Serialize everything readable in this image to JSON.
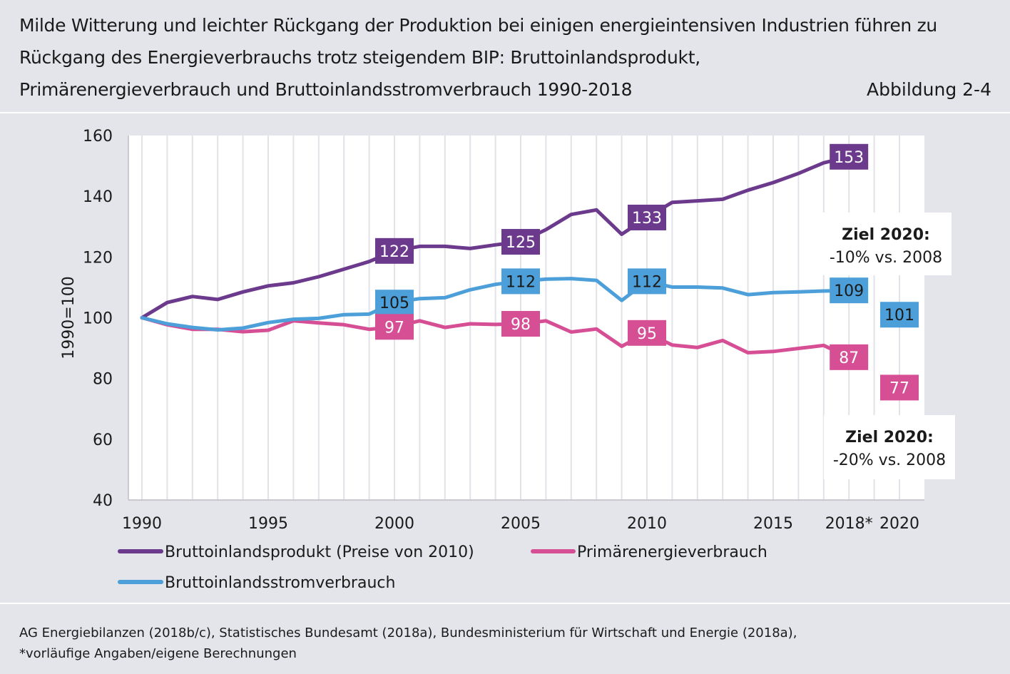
{
  "header": {
    "title_lines": [
      "Milde Witterung und leichter Rückgang der Produktion bei einigen energieintensiven Industrien führen zu",
      "Rückgang des Energieverbrauchs trotz steigendem BIP: Bruttoinlandsprodukt,",
      "Primärenergieverbrauch und Bruttoinlandsstromverbrauch 1990-2018"
    ],
    "figure_label": "Abbildung 2-4"
  },
  "chart_data": {
    "type": "line",
    "ylabel": "1990=100",
    "ylim": [
      40,
      160
    ],
    "yticks": [
      40,
      60,
      80,
      100,
      120,
      140,
      160
    ],
    "x_categories": [
      "1990",
      "1991",
      "1992",
      "1993",
      "1994",
      "1995",
      "1996",
      "1997",
      "1998",
      "1999",
      "2000",
      "2001",
      "2002",
      "2003",
      "2004",
      "2005",
      "2006",
      "2007",
      "2008",
      "2009",
      "2010",
      "2011",
      "2012",
      "2013",
      "2014",
      "2015",
      "2016",
      "2017",
      "2018*",
      "2019",
      "2020"
    ],
    "x_tick_labels": [
      {
        "category": "1990",
        "label": "1990"
      },
      {
        "category": "1995",
        "label": "1995"
      },
      {
        "category": "2000",
        "label": "2000"
      },
      {
        "category": "2005",
        "label": "2005"
      },
      {
        "category": "2010",
        "label": "2010"
      },
      {
        "category": "2015",
        "label": "2015"
      },
      {
        "category": "2018*",
        "label": "2018*"
      },
      {
        "category": "2020",
        "label": "2020"
      }
    ],
    "grid": "vertical",
    "series": [
      {
        "name": "Bruttoinlandsprodukt (Preise von 2010)",
        "color": "#6c3a8c",
        "x": [
          "1990",
          "1991",
          "1992",
          "1993",
          "1994",
          "1995",
          "1996",
          "1997",
          "1998",
          "1999",
          "2000",
          "2001",
          "2002",
          "2003",
          "2004",
          "2005",
          "2006",
          "2007",
          "2008",
          "2009",
          "2010",
          "2011",
          "2012",
          "2013",
          "2014",
          "2015",
          "2016",
          "2017",
          "2018*"
        ],
        "values": [
          100,
          105,
          107,
          106,
          108.5,
          110.5,
          111.5,
          113.5,
          116,
          118.5,
          122,
          123.5,
          123.5,
          122.8,
          124,
          125,
          129,
          134,
          135.5,
          127.5,
          133,
          138,
          138.5,
          139,
          142,
          144.5,
          147.5,
          151,
          153
        ]
      },
      {
        "name": "Primärenergieverbrauch",
        "color": "#d64f95",
        "x": [
          "1990",
          "1991",
          "1992",
          "1993",
          "1994",
          "1995",
          "1996",
          "1997",
          "1998",
          "1999",
          "2000",
          "2001",
          "2002",
          "2003",
          "2004",
          "2005",
          "2006",
          "2007",
          "2008",
          "2009",
          "2010",
          "2011",
          "2012",
          "2013",
          "2014",
          "2015",
          "2016",
          "2017",
          "2018*"
        ],
        "values": [
          100,
          97.7,
          96.2,
          96.2,
          95.4,
          95.9,
          99,
          98.3,
          97.7,
          96.2,
          97,
          99,
          96.8,
          98,
          97.8,
          98,
          99,
          95.3,
          96.3,
          90.6,
          95,
          91,
          90.2,
          92.5,
          88.5,
          88.9,
          89.9,
          90.9,
          87
        ]
      },
      {
        "name": "Bruttoinlandsstromverbrauch",
        "color": "#4d9fd9",
        "x": [
          "1990",
          "1991",
          "1992",
          "1993",
          "1994",
          "1995",
          "1996",
          "1997",
          "1998",
          "1999",
          "2000",
          "2001",
          "2002",
          "2003",
          "2004",
          "2005",
          "2006",
          "2007",
          "2008",
          "2009",
          "2010",
          "2011",
          "2012",
          "2013",
          "2014",
          "2015",
          "2016",
          "2017",
          "2018*"
        ],
        "values": [
          100,
          98,
          96.8,
          96,
          96.6,
          98.4,
          99.5,
          99.8,
          101,
          101.2,
          105,
          106.3,
          106.6,
          109.2,
          111,
          112,
          112.7,
          112.9,
          112.3,
          105.7,
          112,
          110.1,
          110.1,
          109.8,
          107.6,
          108.3,
          108.5,
          108.8,
          109
        ]
      }
    ],
    "data_labels": [
      {
        "series": 0,
        "x": "2000",
        "value": 122,
        "text": "122"
      },
      {
        "series": 0,
        "x": "2005",
        "value": 125,
        "text": "125"
      },
      {
        "series": 0,
        "x": "2010",
        "value": 133,
        "text": "133"
      },
      {
        "series": 0,
        "x": "2018*",
        "value": 153,
        "text": "153"
      },
      {
        "series": 2,
        "x": "2000",
        "value": 105,
        "text": "105"
      },
      {
        "series": 2,
        "x": "2005",
        "value": 112,
        "text": "112"
      },
      {
        "series": 2,
        "x": "2010",
        "value": 112,
        "text": "112"
      },
      {
        "series": 2,
        "x": "2018*",
        "value": 109,
        "text": "109"
      },
      {
        "series": 2,
        "x": "2020",
        "value": 101,
        "text": "101"
      },
      {
        "series": 1,
        "x": "2000",
        "value": 97,
        "text": "97"
      },
      {
        "series": 1,
        "x": "2005",
        "value": 98,
        "text": "98"
      },
      {
        "series": 1,
        "x": "2010",
        "value": 95,
        "text": "95"
      },
      {
        "series": 1,
        "x": "2018*",
        "value": 87,
        "text": "87"
      },
      {
        "series": 1,
        "x": "2020",
        "value": 77,
        "text": "77"
      }
    ],
    "annotations": [
      {
        "title": "Ziel 2020:",
        "text": "-10% vs. 2008"
      },
      {
        "title": "Ziel 2020:",
        "text": "-20% vs. 2008"
      }
    ],
    "legend_position": "bottom"
  },
  "footer": {
    "lines": [
      "AG Energiebilanzen (2018b/c), Statistisches Bundesamt (2018a), Bundesministerium für Wirtschaft und Energie (2018a),",
      "*vorläufige Angaben/eigene Berechnungen"
    ]
  }
}
